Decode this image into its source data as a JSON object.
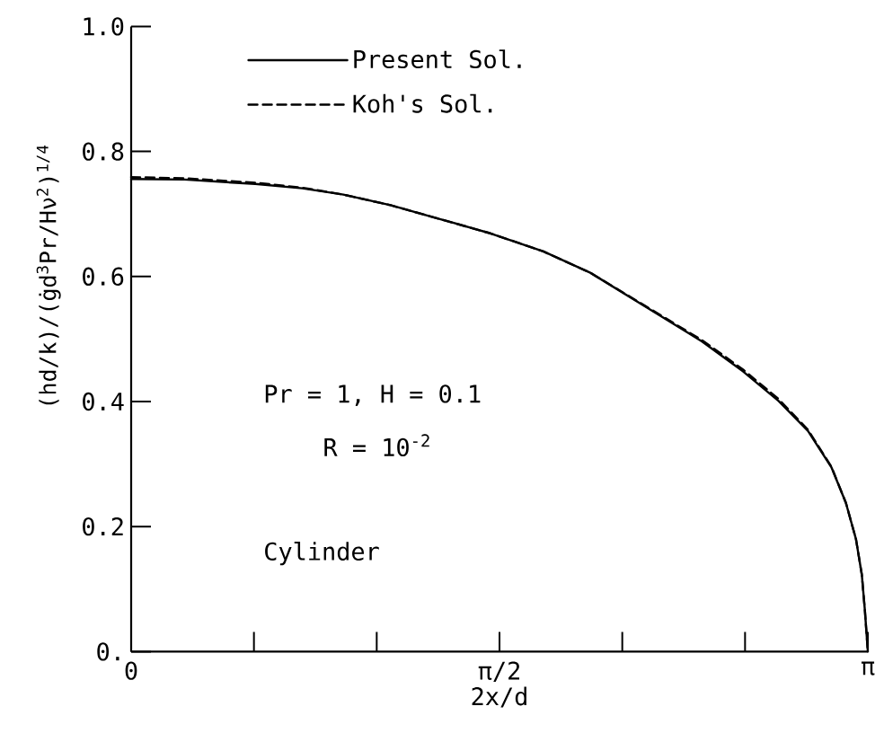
{
  "chart_data": {
    "type": "line",
    "xlabel": "2x/d",
    "ylabel": "(hd/k)/(ġd$^{3}$Pr/Hν$^{2}$)$^{1/4}$",
    "x": [
      0,
      0.228,
      0.529,
      0.73,
      0.905,
      1.106,
      1.306,
      1.532,
      1.758,
      1.958,
      2.183,
      2.435,
      2.61,
      2.761,
      2.886,
      2.986,
      3.048,
      3.091,
      3.116,
      3.129,
      3.1416
    ],
    "series": [
      {
        "name": "Present Sol.",
        "color": "#000000",
        "line_style": "solid",
        "values": [
          0.756,
          0.755,
          0.748,
          0.741,
          0.731,
          0.714,
          0.693,
          0.669,
          0.64,
          0.606,
          0.554,
          0.496,
          0.448,
          0.401,
          0.353,
          0.295,
          0.238,
          0.18,
          0.123,
          0.066,
          0
        ]
      },
      {
        "name": "Koh's Sol.",
        "color": "#000000",
        "line_style": "dashed",
        "values": [
          0.759,
          0.757,
          0.75,
          0.742,
          0.731,
          0.714,
          0.693,
          0.669,
          0.64,
          0.606,
          0.555,
          0.498,
          0.451,
          0.404,
          0.355,
          0.296,
          0.238,
          0.18,
          0.123,
          0.066,
          0
        ]
      }
    ],
    "xlim": [
      0,
      3.1416
    ],
    "xticks": [
      {
        "value": 0,
        "label": "0"
      },
      {
        "value": 0.5236,
        "label": null
      },
      {
        "value": 1.0472,
        "label": null
      },
      {
        "value": 1.5708,
        "label": "π/2"
      },
      {
        "value": 2.0944,
        "label": null
      },
      {
        "value": 2.618,
        "label": null
      },
      {
        "value": 3.1416,
        "label": "π"
      }
    ],
    "ylim": [
      0,
      1.0
    ],
    "yticks": [
      {
        "value": 0,
        "label": "0."
      },
      0.2,
      0.4,
      0.6,
      0.8,
      {
        "value": 1.0,
        "label": "1.0"
      }
    ],
    "legend": "top left",
    "annotations": [
      "Pr = 1,  H = 0.1",
      "R = 10$^{-2}$",
      "Cylinder"
    ]
  }
}
